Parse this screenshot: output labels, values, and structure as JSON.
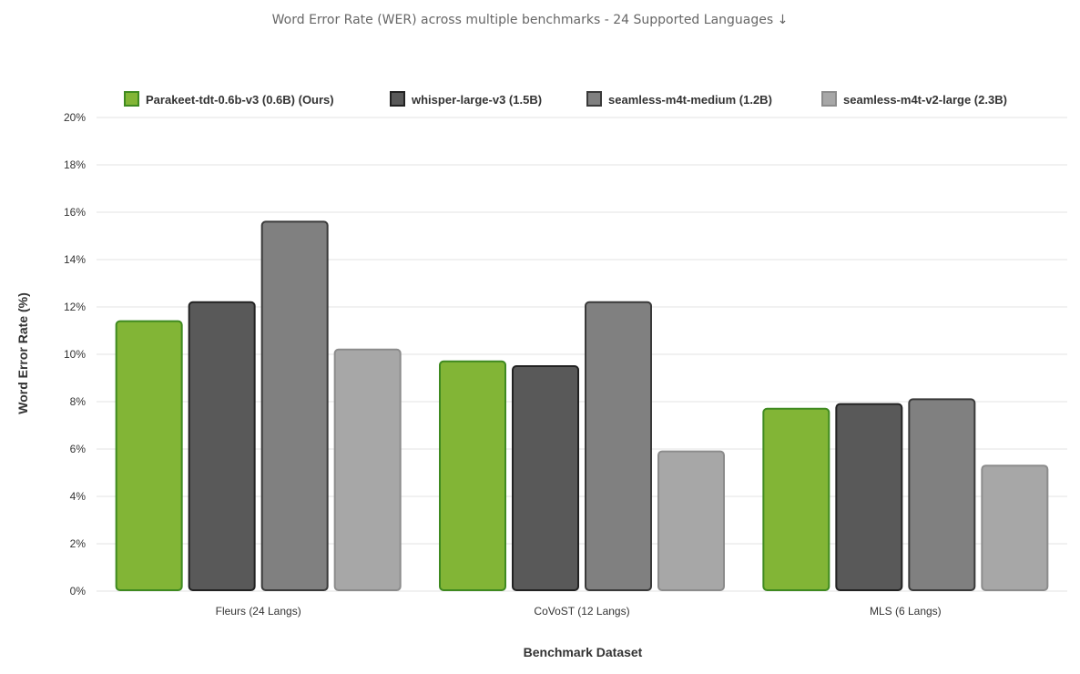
{
  "chart_data": {
    "type": "bar",
    "title": "Word Error Rate (WER) across multiple benchmarks - 24 Supported Languages ↓",
    "xlabel": "Benchmark Dataset",
    "ylabel": "Word Error Rate (%)",
    "categories": [
      "Fleurs (24 Langs)",
      "CoVoST (12 Langs)",
      "MLS (6 Langs)"
    ],
    "ylim": [
      0,
      20
    ],
    "yticks": [
      {
        "value": 0,
        "label": "0%"
      },
      {
        "value": 2,
        "label": "2%"
      },
      {
        "value": 4,
        "label": "4%"
      },
      {
        "value": 6,
        "label": "6%"
      },
      {
        "value": 8,
        "label": "8%"
      },
      {
        "value": 10,
        "label": "10%"
      },
      {
        "value": 12,
        "label": "12%"
      },
      {
        "value": 14,
        "label": "14%"
      },
      {
        "value": 16,
        "label": "16%"
      },
      {
        "value": 18,
        "label": "18%"
      },
      {
        "value": 20,
        "label": "20%"
      }
    ],
    "grid": true,
    "legend_position": "top",
    "series": [
      {
        "name": "Parakeet-tdt-0.6b-v3 (0.6B) (Ours)",
        "values": [
          11.4,
          9.7,
          7.7
        ],
        "color": "#82b536",
        "border": "#3f8a20"
      },
      {
        "name": "whisper-large-v3 (1.5B)",
        "values": [
          12.2,
          9.5,
          7.9
        ],
        "color": "#595959",
        "border": "#222222"
      },
      {
        "name": "seamless-m4t-medium (1.2B)",
        "values": [
          15.6,
          12.2,
          8.1
        ],
        "color": "#808080",
        "border": "#3a3a3a"
      },
      {
        "name": "seamless-m4t-v2-large (2.3B)",
        "values": [
          10.2,
          5.9,
          5.3
        ],
        "color": "#a7a7a7",
        "border": "#8c8c8c"
      }
    ]
  }
}
